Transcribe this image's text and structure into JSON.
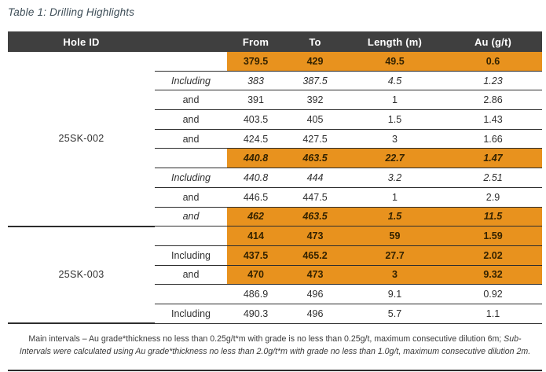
{
  "title": "Table 1: Drilling Highlights",
  "colors": {
    "highlight": "#E8921E",
    "header_bg": "#3F3F3F",
    "header_text": "#FFFFFF",
    "title": "#3E4E58",
    "rule": "#2D2D2D",
    "text": "#303030"
  },
  "table": {
    "headers": {
      "hole_id": "Hole ID",
      "qualifier": "",
      "from": "From",
      "to": "To",
      "length": "Length (m)",
      "au": "Au (g/t)"
    },
    "groups": [
      {
        "hole_id": "25SK-002",
        "rows": [
          {
            "qualifier": "",
            "qualifier_italic": false,
            "from": "379.5",
            "to": "429",
            "length": "49.5",
            "au": "0.6",
            "highlight": true,
            "style": "bold"
          },
          {
            "qualifier": "Including",
            "qualifier_italic": true,
            "from": "383",
            "to": "387.5",
            "length": "4.5",
            "au": "1.23",
            "highlight": false,
            "style": "italic"
          },
          {
            "qualifier": "and",
            "qualifier_italic": false,
            "from": "391",
            "to": "392",
            "length": "1",
            "au": "2.86",
            "highlight": false,
            "style": "normal"
          },
          {
            "qualifier": "and",
            "qualifier_italic": false,
            "from": "403.5",
            "to": "405",
            "length": "1.5",
            "au": "1.43",
            "highlight": false,
            "style": "normal"
          },
          {
            "qualifier": "and",
            "qualifier_italic": false,
            "from": "424.5",
            "to": "427.5",
            "length": "3",
            "au": "1.66",
            "highlight": false,
            "style": "normal"
          },
          {
            "qualifier": "",
            "qualifier_italic": false,
            "from": "440.8",
            "to": "463.5",
            "length": "22.7",
            "au": "1.47",
            "highlight": true,
            "style": "bold-italic"
          },
          {
            "qualifier": "Including",
            "qualifier_italic": true,
            "from": "440.8",
            "to": "444",
            "length": "3.2",
            "au": "2.51",
            "highlight": false,
            "style": "italic"
          },
          {
            "qualifier": "and",
            "qualifier_italic": false,
            "from": "446.5",
            "to": "447.5",
            "length": "1",
            "au": "2.9",
            "highlight": false,
            "style": "normal"
          },
          {
            "qualifier": "and",
            "qualifier_italic": true,
            "from": "462",
            "to": "463.5",
            "length": "1.5",
            "au": "11.5",
            "highlight": true,
            "style": "bold-italic"
          }
        ]
      },
      {
        "hole_id": "25SK-003",
        "rows": [
          {
            "qualifier": "",
            "qualifier_italic": false,
            "from": "414",
            "to": "473",
            "length": "59",
            "au": "1.59",
            "highlight": true,
            "style": "bold"
          },
          {
            "qualifier": "Including",
            "qualifier_italic": false,
            "from": "437.5",
            "to": "465.2",
            "length": "27.7",
            "au": "2.02",
            "highlight": true,
            "style": "bold"
          },
          {
            "qualifier": "and",
            "qualifier_italic": false,
            "from": "470",
            "to": "473",
            "length": "3",
            "au": "9.32",
            "highlight": true,
            "style": "bold"
          },
          {
            "qualifier": "",
            "qualifier_italic": false,
            "from": "486.9",
            "to": "496",
            "length": "9.1",
            "au": "0.92",
            "highlight": false,
            "style": "normal"
          },
          {
            "qualifier": "Including",
            "qualifier_italic": false,
            "from": "490.3",
            "to": "496",
            "length": "5.7",
            "au": "1.1",
            "highlight": false,
            "style": "normal"
          }
        ]
      }
    ]
  },
  "footnote": {
    "main": "Main intervals – Au grade*thickness no less than 0.25g/t*m with grade is no less than 0.25g/t, maximum consecutive dilution 6m; ",
    "sub": "Sub-Intervals were calculated using Au grade*thickness no less than 2.0g/t*m with grade no less than 1.0g/t, maximum consecutive dilution 2m."
  }
}
